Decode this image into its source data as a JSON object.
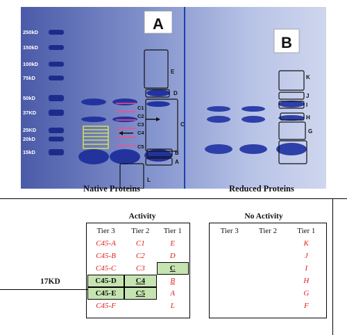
{
  "gel": {
    "markers": [
      "250kD",
      "150kD",
      "100kD",
      "75kD",
      "50kD",
      "37KD",
      "25KD",
      "20kD",
      "15kD"
    ],
    "panel_a": "A",
    "panel_b": "B",
    "a_boxes": [
      "E",
      "D",
      "C",
      "B",
      "A",
      "L"
    ],
    "a_slices": [
      "C1",
      "C2",
      "C3",
      "C4",
      "C5"
    ],
    "b_boxes": [
      "K",
      "J",
      "I",
      "H",
      "G"
    ],
    "colors": {
      "gel_bg": "#7f8fc9",
      "band": "#1f2f9a",
      "box": "#111111",
      "slice": "#ff4a86",
      "yellow": "#e8f03a",
      "divider": "#1e3fb0"
    }
  },
  "captions": {
    "native": "Native Proteins",
    "reduced": "Reduced Proteins"
  },
  "activity": {
    "title": "Activity",
    "headers": [
      "Tier 3",
      "Tier 2",
      "Tier 1"
    ],
    "rows": [
      [
        "C45-A",
        "C1",
        "E"
      ],
      [
        "C45-B",
        "C2",
        "D"
      ],
      [
        "C45-C",
        "C3",
        "C"
      ],
      [
        "C45-D",
        "C4",
        "B"
      ],
      [
        "C45-E",
        "C5",
        "A"
      ],
      [
        "C45-F",
        "",
        "L"
      ]
    ]
  },
  "marker_label": "17KD",
  "no_activity": {
    "title": "No Activity",
    "headers": [
      "Tier 3",
      "Tier 2",
      "Tier 1"
    ],
    "rows": [
      "K",
      "J",
      "I",
      "H",
      "G",
      "F"
    ]
  }
}
